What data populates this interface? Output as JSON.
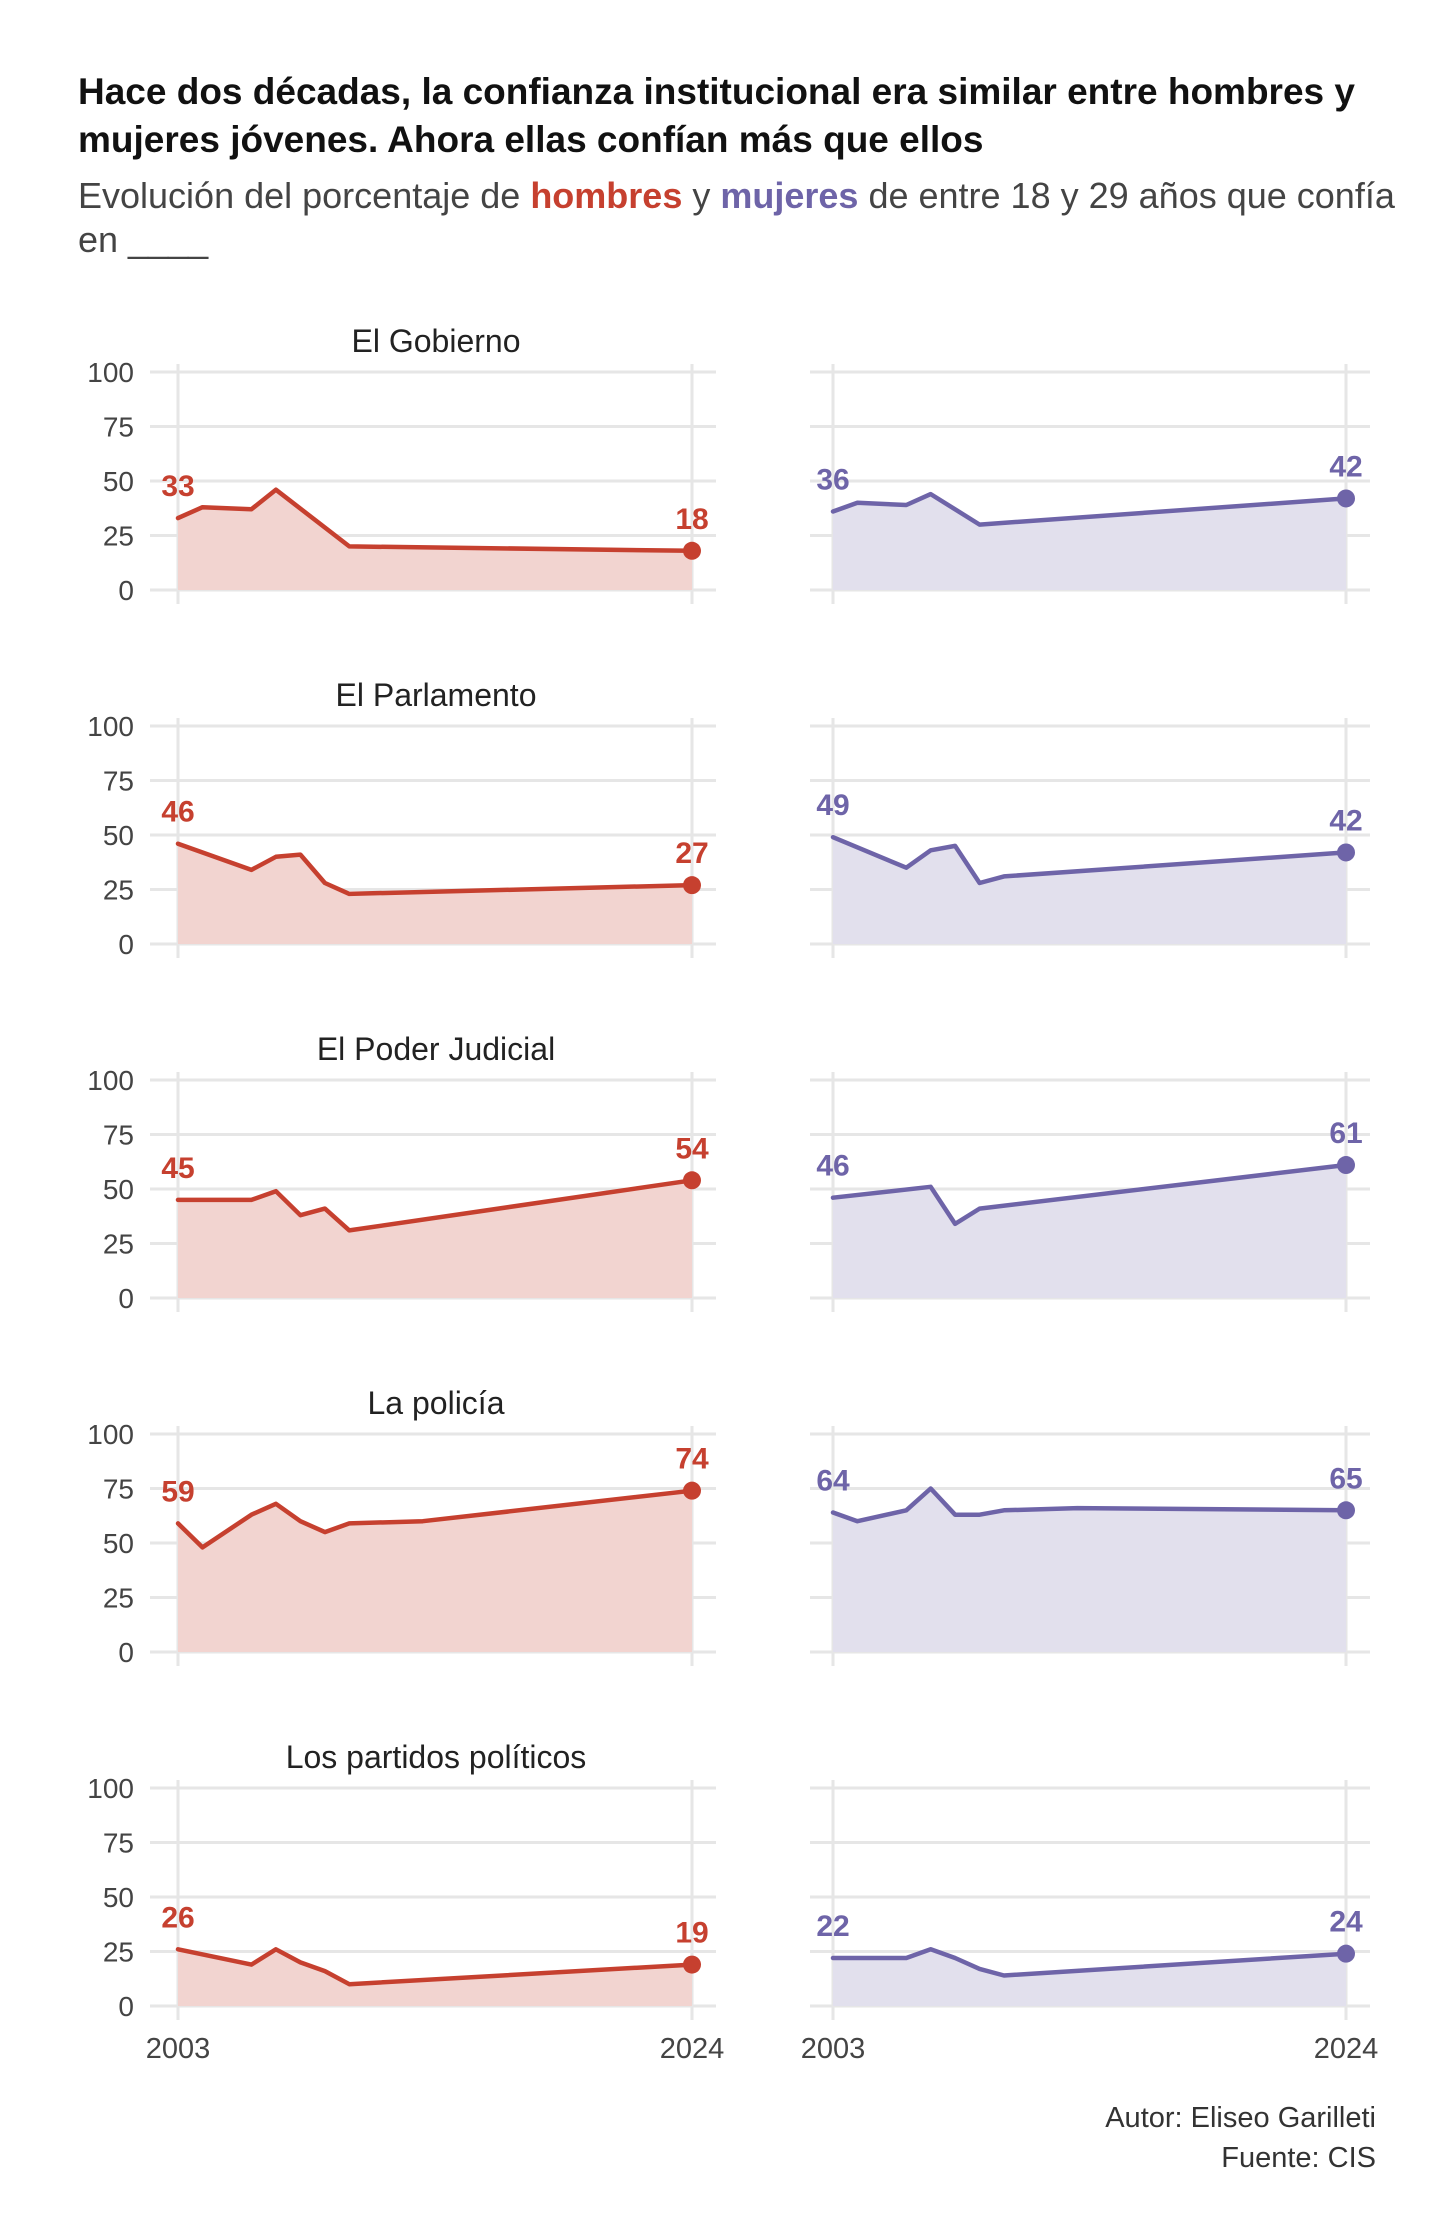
{
  "title": "Hace dos décadas, la confianza institucional era similar entre hombres y mujeres jóvenes. Ahora ellas confían más que ellos",
  "subtitle": {
    "before": "Evolución del porcentaje de ",
    "men": "hombres",
    "mid": " y ",
    "women": "mujeres",
    "after": " de entre 18 y 29 años que confía en ____"
  },
  "footer": {
    "author": "Autor: Eliseo Garilleti",
    "source": "Fuente: CIS"
  },
  "colors": {
    "men": "#c6402f",
    "men_fill": "#f2d4d0",
    "women": "#6e64a8",
    "women_fill": "#e2e0ed",
    "grid": "#e6e6e6",
    "axis_text": "#444444"
  },
  "chart_data": {
    "type": "area",
    "layout": "small multiples, rows = institution, left column = hombres, right column = mujeres",
    "x_ticks": [
      2003,
      2024
    ],
    "xlim": [
      2003,
      2024
    ],
    "y_ticks": [
      0,
      25,
      50,
      75,
      100
    ],
    "ylim": [
      0,
      100
    ],
    "grid": true,
    "panels": [
      {
        "label": "El Gobierno",
        "men": {
          "x": [
            2003,
            2004,
            2006,
            2007,
            2010,
            2024
          ],
          "y": [
            33,
            38,
            37,
            46,
            20,
            18
          ]
        },
        "women": {
          "x": [
            2003,
            2004,
            2006,
            2007,
            2009,
            2024
          ],
          "y": [
            36,
            40,
            39,
            44,
            30,
            42
          ]
        }
      },
      {
        "label": "El Parlamento",
        "men": {
          "x": [
            2003,
            2006,
            2007,
            2008,
            2009,
            2010,
            2024
          ],
          "y": [
            46,
            34,
            40,
            41,
            28,
            23,
            27
          ]
        },
        "women": {
          "x": [
            2003,
            2006,
            2007,
            2008,
            2009,
            2010,
            2024
          ],
          "y": [
            49,
            35,
            43,
            45,
            28,
            31,
            42
          ]
        }
      },
      {
        "label": "El Poder Judicial",
        "men": {
          "x": [
            2003,
            2006,
            2007,
            2008,
            2009,
            2010,
            2024
          ],
          "y": [
            45,
            45,
            49,
            38,
            41,
            31,
            54
          ]
        },
        "women": {
          "x": [
            2003,
            2007,
            2008,
            2009,
            2024
          ],
          "y": [
            46,
            51,
            34,
            41,
            61
          ]
        }
      },
      {
        "label": "La policía",
        "men": {
          "x": [
            2003,
            2004,
            2006,
            2007,
            2008,
            2009,
            2010,
            2013,
            2024
          ],
          "y": [
            59,
            48,
            63,
            68,
            60,
            55,
            59,
            60,
            74
          ]
        },
        "women": {
          "x": [
            2003,
            2004,
            2006,
            2007,
            2008,
            2009,
            2010,
            2013,
            2024
          ],
          "y": [
            64,
            60,
            65,
            75,
            63,
            63,
            65,
            66,
            65
          ]
        }
      },
      {
        "label": "Los partidos políticos",
        "men": {
          "x": [
            2003,
            2006,
            2007,
            2008,
            2009,
            2010,
            2024
          ],
          "y": [
            26,
            19,
            26,
            20,
            16,
            10,
            19
          ]
        },
        "women": {
          "x": [
            2003,
            2006,
            2007,
            2008,
            2009,
            2010,
            2024
          ],
          "y": [
            22,
            22,
            26,
            22,
            17,
            14,
            24
          ]
        }
      }
    ]
  }
}
